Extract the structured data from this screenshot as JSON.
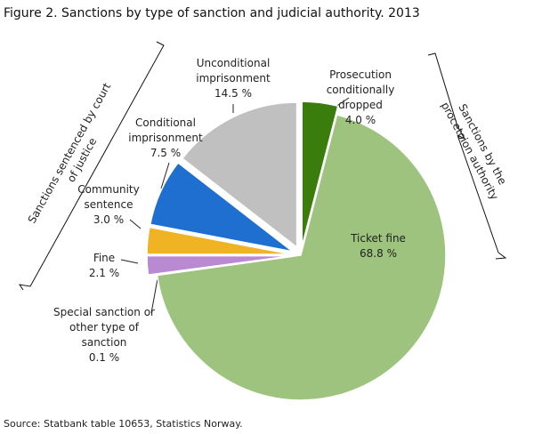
{
  "chart_data": {
    "type": "pie",
    "title": "Figure 2. Sanctions by type of sanction and judicial authority. 2013",
    "categories": [
      "Prosecution conditionally dropped",
      "Ticket fine",
      "Special sanction or other type of sanction",
      "Fine",
      "Community sentence",
      "Conditional imprisonment",
      "Unconditional imprisonment"
    ],
    "values": [
      4.0,
      68.8,
      0.1,
      2.1,
      3.0,
      7.5,
      14.5
    ],
    "value_labels": [
      "4.0 %",
      "68.8 %",
      "0.1 %",
      "2.1 %",
      "3.0 %",
      "7.5 %",
      "14.5 %"
    ],
    "colors": [
      "#3b7d0c",
      "#9dc37e",
      "#8e5aa8",
      "#b98ad2",
      "#f0b323",
      "#1f6fd0",
      "#c0c0c0"
    ],
    "annotations": [
      "Sanctions sentenced by court of justice",
      "Sanctions by the procetoion authority"
    ],
    "source": "Source: Statbank table 10653, Statistics Norway."
  }
}
